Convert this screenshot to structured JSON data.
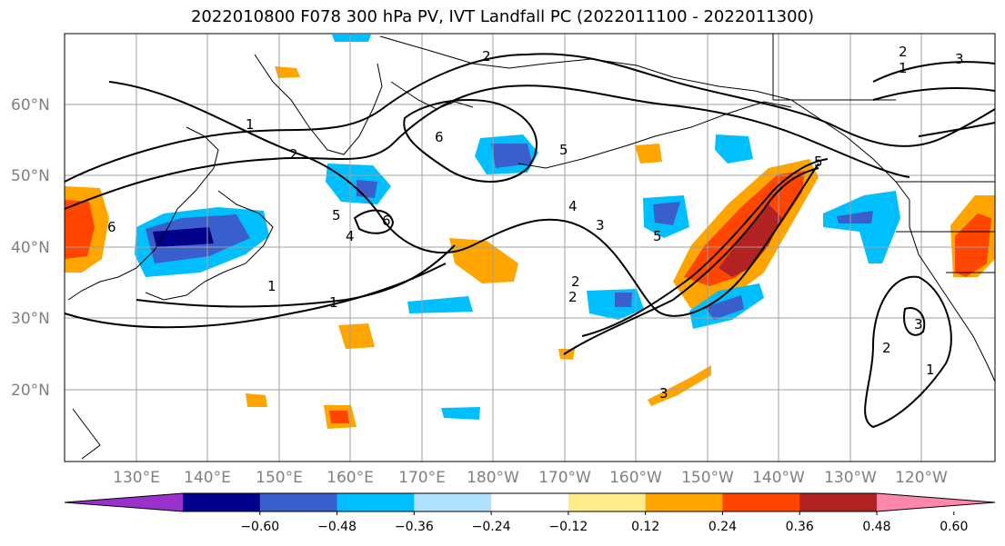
{
  "title": "2022010800 F078 300 hPa PV, IVT Landfall PC (2022011100 - 2022011300)",
  "lat_labels": [
    "60°N",
    "50°N",
    "40°N",
    "30°N",
    "20°N"
  ],
  "lon_labels": [
    "130°E",
    "140°E",
    "150°E",
    "160°E",
    "170°E",
    "180°W",
    "170°W",
    "160°W",
    "150°W",
    "140°W",
    "130°W",
    "120°W"
  ],
  "colorbar": {
    "colors": [
      "#9932cc",
      "#00008b",
      "#3a5fcd",
      "#00bfff",
      "#b0e2ff",
      "#ffffff",
      "#ffec8b",
      "#ffa500",
      "#ff4500",
      "#b22222",
      "#ff88aa"
    ],
    "ticks": [
      "−0.60",
      "−0.48",
      "−0.36",
      "−0.24",
      "−0.12",
      "0.12",
      "0.24",
      "0.36",
      "0.48",
      "0.60"
    ]
  },
  "contour_labels": [
    "1",
    "2",
    "1",
    "2",
    "6",
    "5",
    "4",
    "6",
    "5",
    "4",
    "3",
    "2",
    "1",
    "1",
    "2",
    "6",
    "3",
    "5",
    "5",
    "3",
    "2",
    "1",
    "2",
    "3",
    "1",
    "3",
    "6"
  ]
}
